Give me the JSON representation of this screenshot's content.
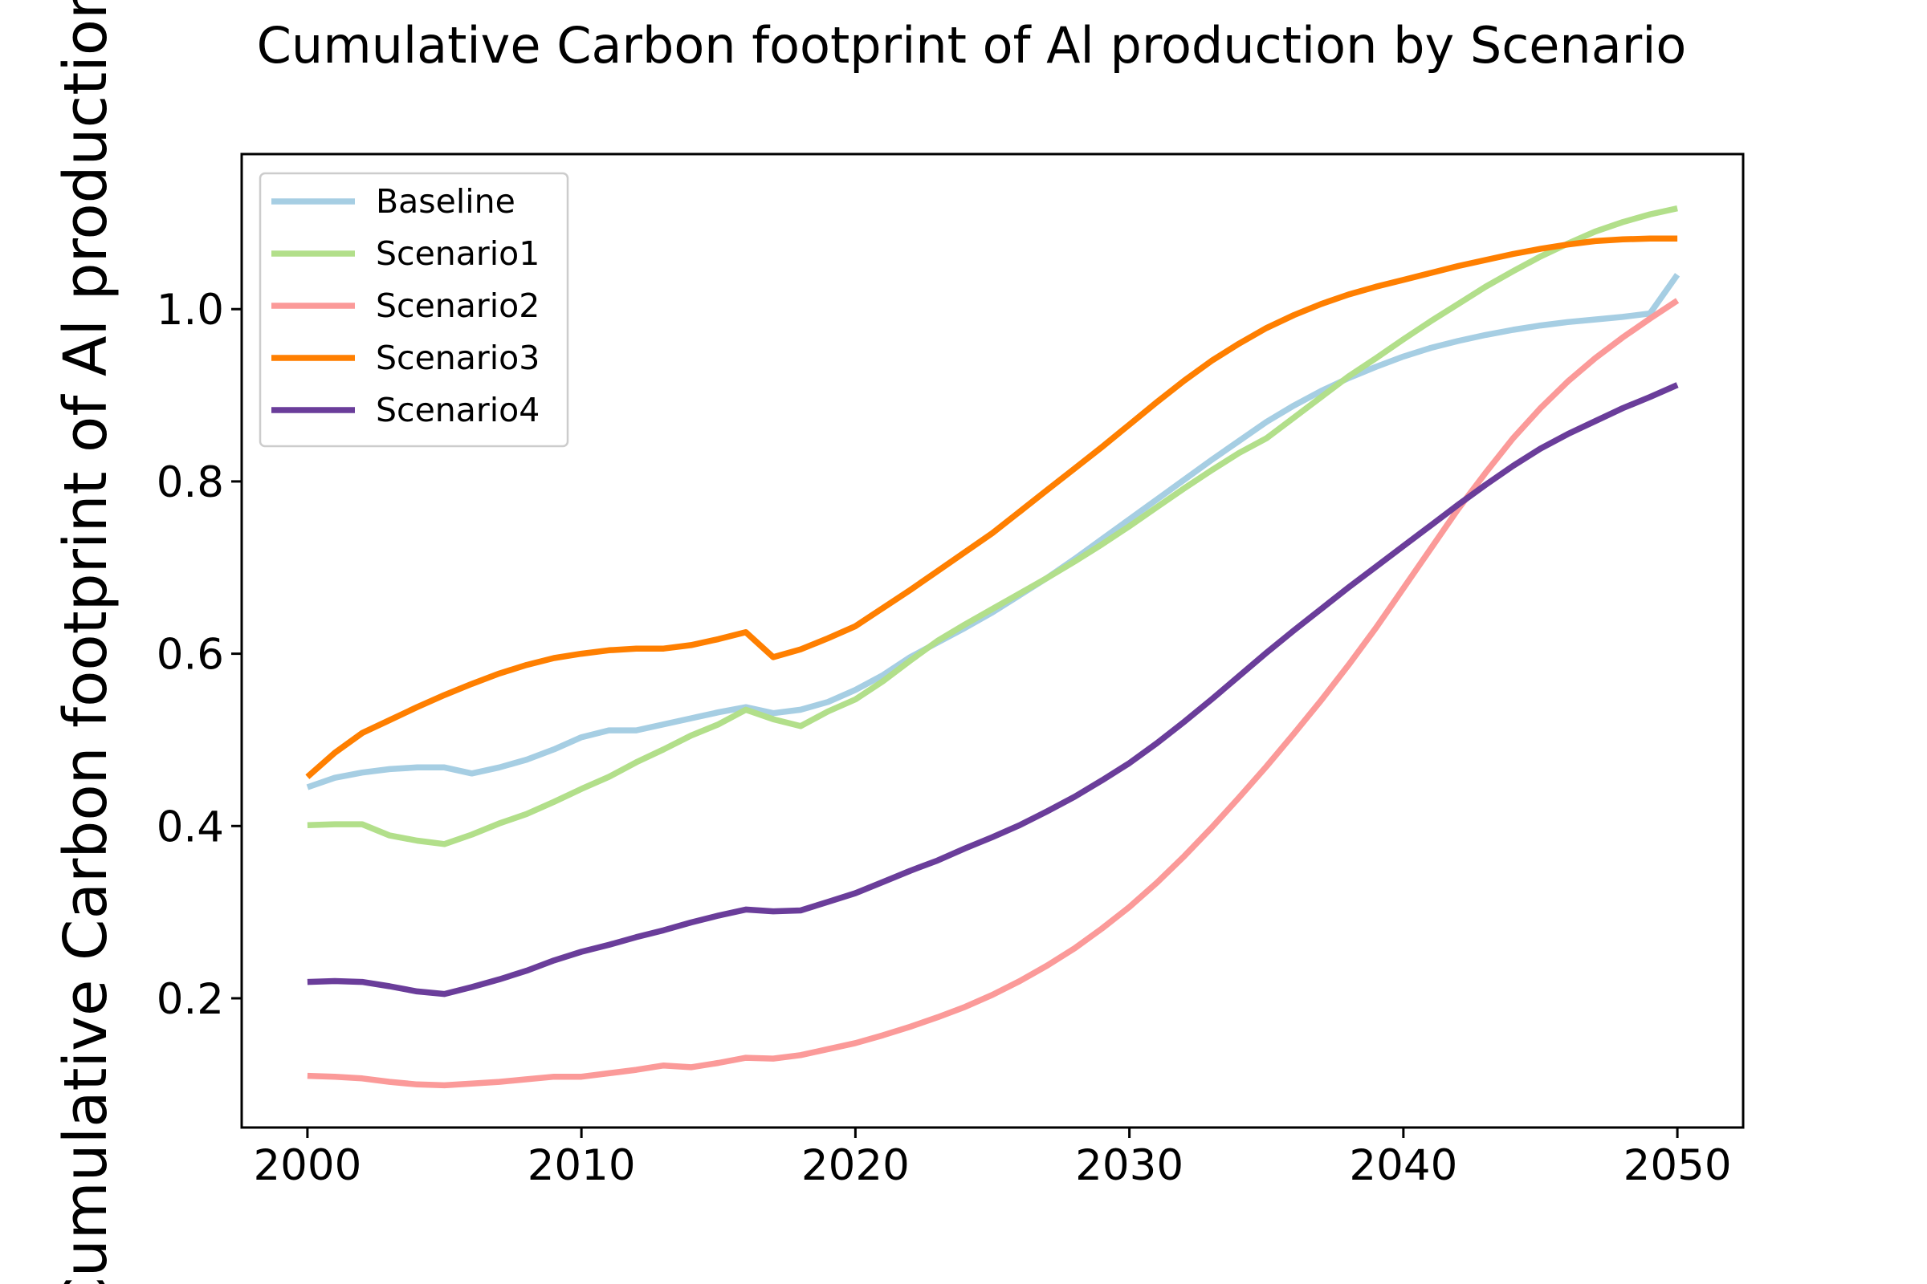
{
  "chart_data": {
    "type": "line",
    "title": "Cumulative Carbon footprint of Al production by Scenario",
    "ylabel": "Cumulative Carbon footprint of Al production",
    "xlabel": "",
    "xlim": [
      1997.6,
      2052.4
    ],
    "ylim": [
      0.05,
      1.18
    ],
    "x_ticks": [
      2000,
      2010,
      2020,
      2030,
      2040,
      2050
    ],
    "y_ticks": [
      0.2,
      0.4,
      0.6,
      0.8,
      1.0
    ],
    "grid": false,
    "legend_position": "upper-left",
    "x": [
      2000,
      2001,
      2002,
      2003,
      2004,
      2005,
      2006,
      2007,
      2008,
      2009,
      2010,
      2011,
      2012,
      2013,
      2014,
      2015,
      2016,
      2017,
      2018,
      2019,
      2020,
      2021,
      2022,
      2023,
      2024,
      2025,
      2026,
      2027,
      2028,
      2029,
      2030,
      2031,
      2032,
      2033,
      2034,
      2035,
      2036,
      2037,
      2038,
      2039,
      2040,
      2041,
      2042,
      2043,
      2044,
      2045,
      2046,
      2047,
      2048,
      2049,
      2050
    ],
    "series": [
      {
        "name": "Baseline",
        "color": "#a6cee3",
        "values": [
          0.445,
          0.456,
          0.462,
          0.466,
          0.468,
          0.468,
          0.461,
          0.468,
          0.477,
          0.489,
          0.503,
          0.511,
          0.511,
          0.518,
          0.525,
          0.532,
          0.538,
          0.531,
          0.535,
          0.544,
          0.558,
          0.575,
          0.596,
          0.613,
          0.63,
          0.648,
          0.668,
          0.688,
          0.71,
          0.733,
          0.756,
          0.779,
          0.802,
          0.825,
          0.847,
          0.869,
          0.888,
          0.905,
          0.92,
          0.933,
          0.945,
          0.955,
          0.963,
          0.97,
          0.976,
          0.981,
          0.985,
          0.988,
          0.991,
          0.995,
          1.04
        ]
      },
      {
        "name": "Scenario1",
        "color": "#b2df8a",
        "values": [
          0.401,
          0.402,
          0.402,
          0.389,
          0.383,
          0.379,
          0.39,
          0.403,
          0.414,
          0.428,
          0.443,
          0.457,
          0.474,
          0.489,
          0.505,
          0.518,
          0.535,
          0.524,
          0.516,
          0.533,
          0.547,
          0.568,
          0.592,
          0.615,
          0.634,
          0.652,
          0.67,
          0.688,
          0.707,
          0.727,
          0.748,
          0.77,
          0.792,
          0.813,
          0.833,
          0.85,
          0.874,
          0.898,
          0.922,
          0.943,
          0.965,
          0.986,
          1.006,
          1.026,
          1.044,
          1.061,
          1.076,
          1.09,
          1.101,
          1.11,
          1.117
        ]
      },
      {
        "name": "Scenario2",
        "color": "#fb9a99",
        "values": [
          0.11,
          0.109,
          0.107,
          0.103,
          0.1,
          0.099,
          0.101,
          0.103,
          0.106,
          0.109,
          0.109,
          0.113,
          0.117,
          0.122,
          0.12,
          0.125,
          0.131,
          0.13,
          0.134,
          0.141,
          0.148,
          0.157,
          0.167,
          0.178,
          0.19,
          0.204,
          0.22,
          0.238,
          0.258,
          0.281,
          0.306,
          0.334,
          0.365,
          0.398,
          0.433,
          0.469,
          0.507,
          0.546,
          0.587,
          0.63,
          0.676,
          0.722,
          0.768,
          0.81,
          0.85,
          0.885,
          0.916,
          0.943,
          0.967,
          0.989,
          1.01
        ]
      },
      {
        "name": "Scenario3",
        "color": "#ff7f00",
        "values": [
          0.457,
          0.485,
          0.508,
          0.523,
          0.538,
          0.552,
          0.565,
          0.577,
          0.587,
          0.595,
          0.6,
          0.604,
          0.606,
          0.606,
          0.61,
          0.617,
          0.625,
          0.596,
          0.605,
          0.618,
          0.632,
          0.653,
          0.674,
          0.696,
          0.718,
          0.74,
          0.765,
          0.79,
          0.815,
          0.84,
          0.866,
          0.892,
          0.917,
          0.94,
          0.96,
          0.978,
          0.993,
          1.006,
          1.017,
          1.026,
          1.034,
          1.042,
          1.05,
          1.057,
          1.064,
          1.07,
          1.075,
          1.079,
          1.081,
          1.082,
          1.082
        ]
      },
      {
        "name": "Scenario4",
        "color": "#6a3d9a",
        "values": [
          0.219,
          0.22,
          0.219,
          0.214,
          0.208,
          0.205,
          0.213,
          0.222,
          0.232,
          0.244,
          0.254,
          0.262,
          0.271,
          0.279,
          0.288,
          0.296,
          0.303,
          0.301,
          0.302,
          0.312,
          0.322,
          0.335,
          0.348,
          0.36,
          0.374,
          0.387,
          0.401,
          0.417,
          0.434,
          0.453,
          0.473,
          0.496,
          0.521,
          0.547,
          0.574,
          0.601,
          0.627,
          0.652,
          0.677,
          0.701,
          0.725,
          0.749,
          0.773,
          0.796,
          0.818,
          0.838,
          0.855,
          0.87,
          0.885,
          0.898,
          0.912
        ]
      }
    ]
  }
}
